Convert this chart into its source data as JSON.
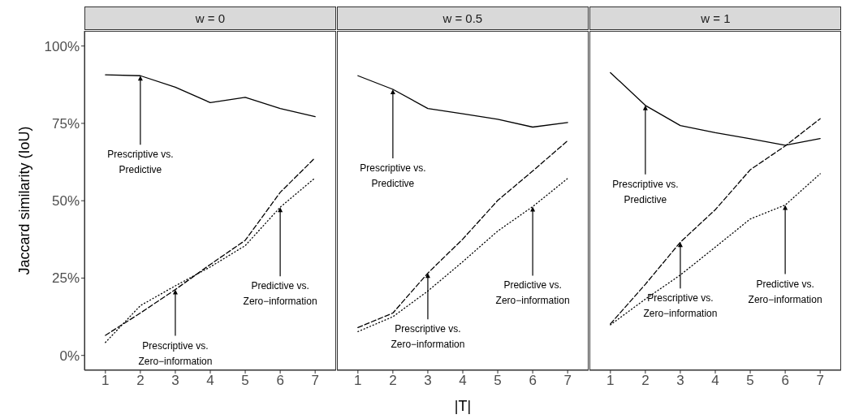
{
  "chart_data": [
    {
      "type": "line",
      "title": "w = 0",
      "ylabel": "Jaccard similarity (IoU)",
      "x": [
        1,
        2,
        3,
        4,
        5,
        6,
        7
      ],
      "xlim": [
        0.4,
        7.6
      ],
      "xticks": [
        1,
        2,
        3,
        4,
        5,
        6,
        7
      ],
      "ylim": [
        -4.8,
        104.9
      ],
      "yticks": [
        {
          "value": 0,
          "label": "0%"
        },
        {
          "value": 25,
          "label": "25%"
        },
        {
          "value": 50,
          "label": "50%"
        },
        {
          "value": 75,
          "label": "75%"
        },
        {
          "value": 100,
          "label": "100%"
        }
      ],
      "grid": false,
      "series": [
        {
          "color": "#000000",
          "line_style": "solid",
          "values": [
            90.7,
            90.4,
            86.7,
            81.7,
            83.4,
            79.8,
            77.2
          ]
        },
        {
          "color": "#000000",
          "line_style": "dashed",
          "values": [
            6.5,
            13.7,
            21.3,
            29.4,
            37.2,
            52.7,
            63.9
          ]
        },
        {
          "color": "#000000",
          "line_style": "dotted",
          "values": [
            4.2,
            16.1,
            22.5,
            28.6,
            35.5,
            47.9,
            57.4
          ]
        }
      ],
      "annotations": [
        {
          "text": "Prescriptive vs.\nPredictive",
          "x": 2,
          "y": 90.4
        },
        {
          "text": "Prescriptive vs.\nZero−information",
          "x": 3,
          "y": 21.3
        },
        {
          "text": "Predictive vs.\nZero−information",
          "x": 6,
          "y": 47.9
        }
      ]
    },
    {
      "type": "line",
      "title": "w = 0.5",
      "xlabel": "|T|",
      "x": [
        1,
        2,
        3,
        4,
        5,
        6,
        7
      ],
      "xlim": [
        0.4,
        7.6
      ],
      "xticks": [
        1,
        2,
        3,
        4,
        5,
        6,
        7
      ],
      "ylim": [
        -4.8,
        104.9
      ],
      "tick_labels": "x",
      "grid": false,
      "series": [
        {
          "color": "#000000",
          "line_style": "solid",
          "values": [
            90.4,
            86.0,
            79.8,
            78.1,
            76.3,
            73.8,
            75.3
          ]
        },
        {
          "color": "#000000",
          "line_style": "dashed",
          "values": [
            9.0,
            13.7,
            26.6,
            37.6,
            50.1,
            59.6,
            69.4
          ]
        },
        {
          "color": "#000000",
          "line_style": "dotted",
          "values": [
            7.7,
            12.5,
            20.8,
            30.3,
            40.2,
            48.1,
            57.2
          ]
        }
      ],
      "annotations": [
        {
          "text": "Prescriptive vs.\nPredictive",
          "x": 2,
          "y": 86.0
        },
        {
          "text": "Prescriptive vs.\nZero−information",
          "x": 3,
          "y": 26.6
        },
        {
          "text": "Predictive vs.\nZero−information",
          "x": 6,
          "y": 48.1
        }
      ]
    },
    {
      "type": "line",
      "title": "w = 1",
      "x": [
        1,
        2,
        3,
        4,
        5,
        6,
        7
      ],
      "xlim": [
        0.4,
        7.6
      ],
      "xticks": [
        1,
        2,
        3,
        4,
        5,
        6,
        7
      ],
      "ylim": [
        -4.8,
        104.9
      ],
      "tick_labels": "x",
      "grid": false,
      "series": [
        {
          "color": "#000000",
          "line_style": "solid",
          "values": [
            91.4,
            80.8,
            74.3,
            72.0,
            70.0,
            67.9,
            70.1
          ]
        },
        {
          "color": "#000000",
          "line_style": "dashed",
          "values": [
            10.2,
            23.0,
            36.6,
            47.1,
            60.0,
            67.7,
            76.5
          ]
        },
        {
          "color": "#000000",
          "line_style": "dotted",
          "values": [
            9.9,
            18.2,
            26.0,
            35.0,
            44.1,
            48.6,
            58.7
          ]
        }
      ],
      "annotations": [
        {
          "text": "Prescriptive vs.\nPredictive",
          "x": 2,
          "y": 80.8
        },
        {
          "text": "Prescriptive vs.\nZero−information",
          "x": 3,
          "y": 36.6
        },
        {
          "text": "Predictive vs.\nZero−information",
          "x": 6,
          "y": 48.6
        }
      ]
    }
  ]
}
